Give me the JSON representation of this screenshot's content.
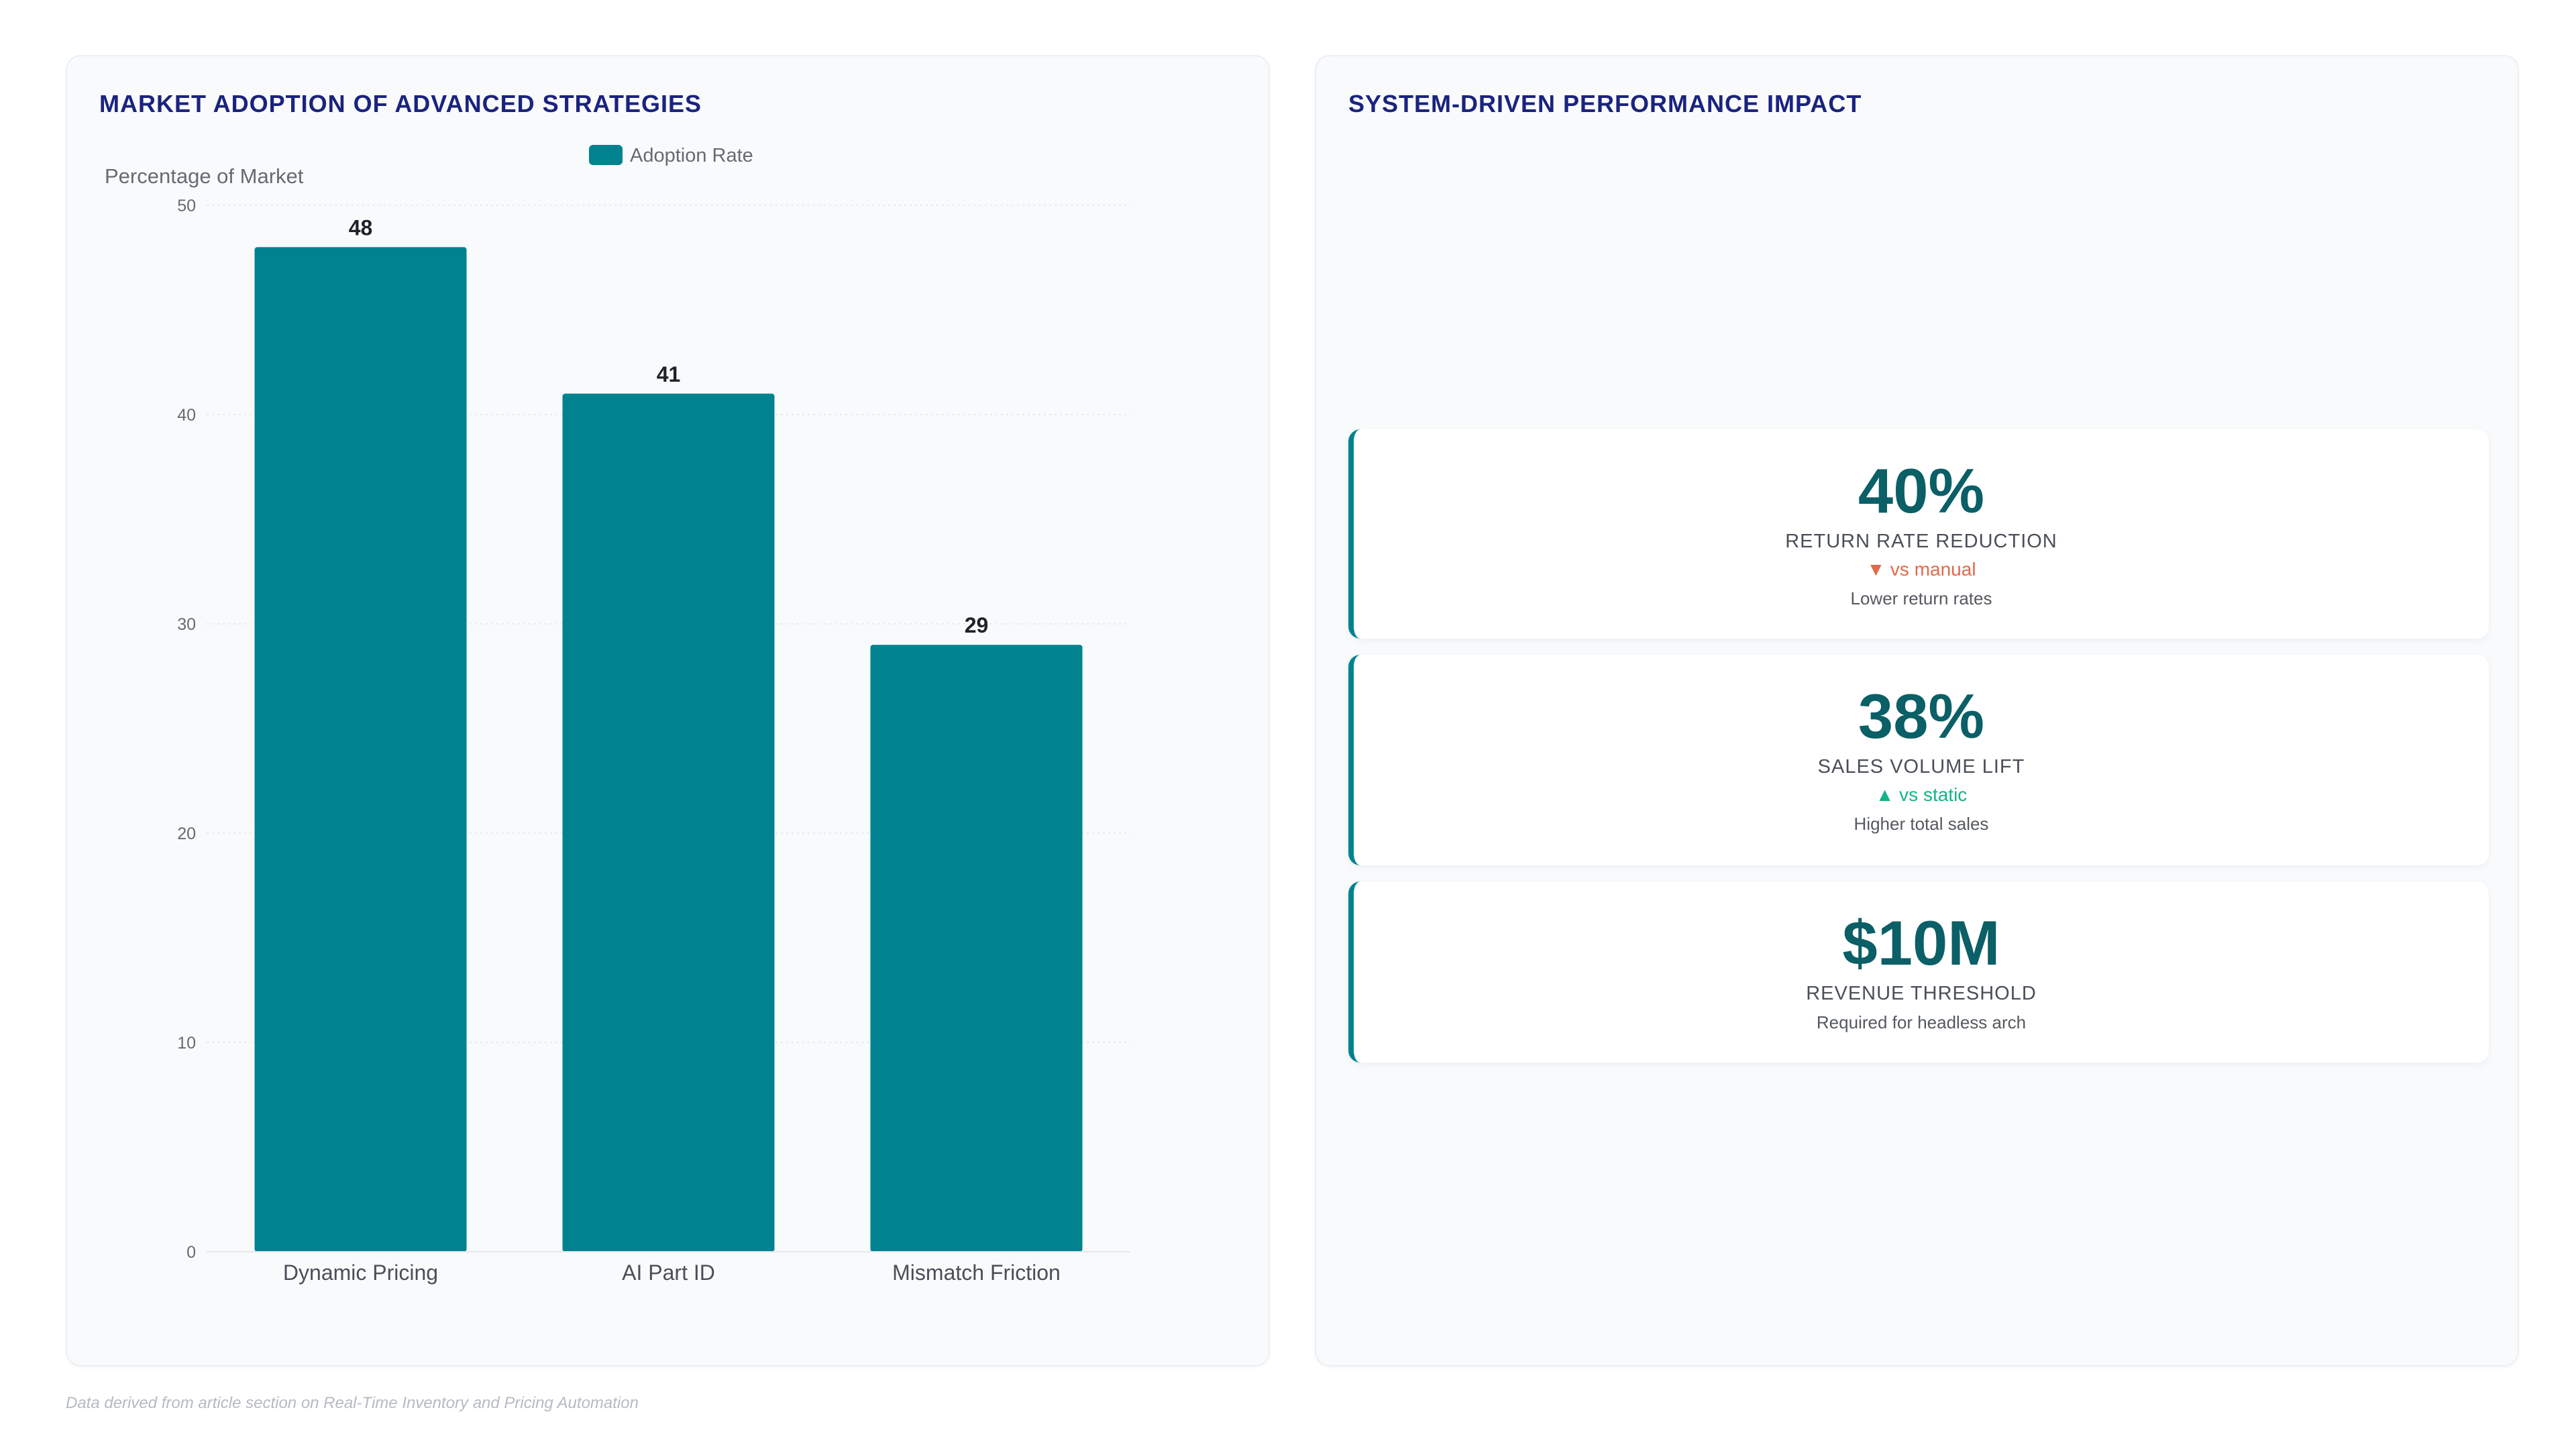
{
  "left_panel": {
    "title": "MARKET ADOPTION OF ADVANCED STRATEGIES"
  },
  "right_panel": {
    "title": "SYSTEM-DRIVEN PERFORMANCE IMPACT",
    "kpis": [
      {
        "value": "40%",
        "label": "RETURN RATE REDUCTION",
        "trend": "▼ vs manual",
        "trend_color": "#e06a4a",
        "note": "Lower return rates"
      },
      {
        "value": "38%",
        "label": "SALES VOLUME LIFT",
        "trend": "▲ vs static",
        "trend_color": "#14b38a",
        "note": "Higher total sales"
      },
      {
        "value": "$10M",
        "label": "REVENUE THRESHOLD",
        "trend": "",
        "trend_color": "",
        "note": "Required for headless arch"
      }
    ]
  },
  "chart_data": {
    "type": "bar",
    "categories": [
      "Dynamic Pricing",
      "AI Part ID",
      "Mismatch Friction"
    ],
    "series": [
      {
        "name": "Adoption Rate",
        "values": [
          48,
          41,
          29
        ],
        "color": "#00838f"
      }
    ],
    "ylabel": "Percentage of Market",
    "xlabel": "",
    "ylim": [
      0,
      50
    ],
    "yticks": [
      0,
      10,
      20,
      30,
      40,
      50
    ],
    "grid": true,
    "legend": "top-center",
    "data_labels": true
  },
  "footnote": "Data derived from article section on Real-Time Inventory and Pricing Automation"
}
